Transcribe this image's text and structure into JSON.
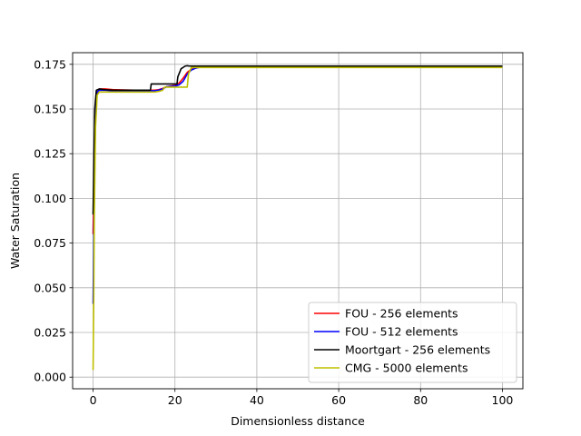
{
  "chart_data": {
    "type": "line",
    "title": "",
    "xlabel": "Dimensionless distance",
    "ylabel": "Water Saturation",
    "xlim": [
      -5,
      105
    ],
    "ylim": [
      -0.0065,
      0.1815
    ],
    "xticks": [
      0,
      20,
      40,
      60,
      80,
      100
    ],
    "xtick_labels": [
      "0",
      "20",
      "40",
      "60",
      "80",
      "100"
    ],
    "yticks": [
      0.0,
      0.025,
      0.05,
      0.075,
      0.1,
      0.125,
      0.15,
      0.175
    ],
    "ytick_labels": [
      "0.000",
      "0.025",
      "0.050",
      "0.075",
      "0.100",
      "0.125",
      "0.150",
      "0.175"
    ],
    "grid": true,
    "legend_position": "lower-right",
    "series": [
      {
        "name": "FOU - 256 elements",
        "color": "#ff0000",
        "x": [
          0,
          0.4,
          0.8,
          1.5,
          3,
          5,
          10,
          15,
          16,
          17,
          18,
          20,
          21,
          22,
          23,
          24,
          25,
          26,
          30,
          50,
          80,
          100
        ],
        "y": [
          0.08,
          0.135,
          0.158,
          0.1612,
          0.1612,
          0.1608,
          0.1605,
          0.1605,
          0.1608,
          0.1615,
          0.1625,
          0.1632,
          0.1645,
          0.1672,
          0.1705,
          0.1722,
          0.1728,
          0.1733,
          0.1735,
          0.1735,
          0.1735,
          0.1735
        ]
      },
      {
        "name": "FOU - 512 elements",
        "color": "#0000ff",
        "x": [
          0,
          0.3,
          0.6,
          1.0,
          1.5,
          3,
          5,
          10,
          15,
          16,
          17,
          18,
          20,
          21,
          22,
          23,
          24,
          25,
          26,
          30,
          50,
          80,
          100
        ],
        "y": [
          0.041,
          0.105,
          0.15,
          0.1595,
          0.1605,
          0.1605,
          0.1602,
          0.1602,
          0.1602,
          0.1605,
          0.1612,
          0.1625,
          0.1628,
          0.1635,
          0.1655,
          0.1695,
          0.1718,
          0.1728,
          0.1733,
          0.1735,
          0.1735,
          0.1735,
          0.1735
        ]
      },
      {
        "name": "Moortgart - 256 elements",
        "color": "#000000",
        "x": [
          0,
          0.4,
          0.8,
          1.5,
          3,
          5,
          10,
          14,
          14.2,
          20.5,
          20.7,
          21.5,
          22.5,
          23,
          23.5,
          30,
          50,
          80,
          100
        ],
        "y": [
          0.091,
          0.15,
          0.1605,
          0.1612,
          0.1608,
          0.1605,
          0.1605,
          0.1605,
          0.164,
          0.164,
          0.168,
          0.1725,
          0.174,
          0.1742,
          0.174,
          0.174,
          0.174,
          0.174,
          0.174
        ]
      },
      {
        "name": "CMG - 5000 elements",
        "color": "#bfbf00",
        "x": [
          0,
          0.15,
          0.3,
          0.6,
          1.0,
          1.5,
          3,
          5,
          10,
          15,
          16,
          17,
          17.5,
          23,
          23.3,
          24,
          30,
          50,
          80,
          100
        ],
        "y": [
          0.004,
          0.04,
          0.09,
          0.14,
          0.1578,
          0.1595,
          0.1595,
          0.1595,
          0.1595,
          0.1595,
          0.1598,
          0.1605,
          0.1622,
          0.1622,
          0.1695,
          0.1732,
          0.1732,
          0.1732,
          0.1732,
          0.1732
        ]
      }
    ]
  }
}
